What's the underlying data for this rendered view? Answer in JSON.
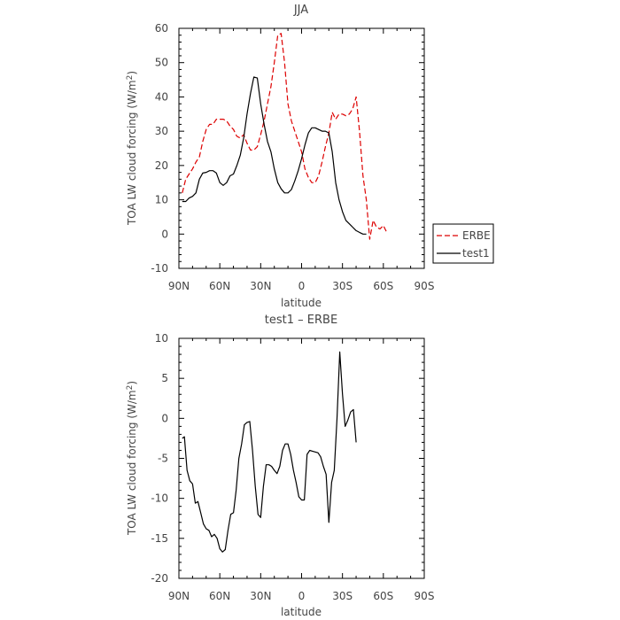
{
  "chart_data": [
    {
      "type": "line",
      "title": "JJA",
      "xlabel": "latitude",
      "ylabel": "TOA LW cloud forcing (W/m",
      "ylabel_sup": "2",
      "ylabel_close": ")",
      "xlim": [
        90,
        -90
      ],
      "ylim": [
        -10,
        60
      ],
      "x_ticks": [
        90,
        60,
        30,
        0,
        -30,
        -60,
        -90
      ],
      "x_tick_labels": [
        "90N",
        "60N",
        "30N",
        "0",
        "30S",
        "60S",
        "90S"
      ],
      "y_ticks": [
        -10,
        0,
        10,
        20,
        30,
        40,
        50,
        60
      ],
      "y_tick_labels": [
        "-10",
        "0",
        "10",
        "20",
        "30",
        "40",
        "50",
        "60"
      ],
      "legend_position": "right-bottom",
      "series": [
        {
          "name": "ERBE",
          "color": "#dd0000",
          "dash": "dashed",
          "points": [
            [
              87.5,
              12
            ],
            [
              85,
              16
            ],
            [
              82.5,
              17.5
            ],
            [
              80,
              19
            ],
            [
              77.5,
              21
            ],
            [
              75,
              22.5
            ],
            [
              72.5,
              27
            ],
            [
              70,
              30.5
            ],
            [
              67.5,
              32
            ],
            [
              65,
              32
            ],
            [
              62.5,
              33.5
            ],
            [
              60,
              33.5
            ],
            [
              57.5,
              33.5
            ],
            [
              55,
              33
            ],
            [
              52.5,
              31.5
            ],
            [
              50,
              30.5
            ],
            [
              47.5,
              28.5
            ],
            [
              45,
              28
            ],
            [
              42.5,
              29
            ],
            [
              40,
              26.5
            ],
            [
              37.5,
              24.5
            ],
            [
              35,
              24.5
            ],
            [
              32.5,
              25.5
            ],
            [
              30,
              29
            ],
            [
              27.5,
              33
            ],
            [
              25,
              38
            ],
            [
              22.5,
              43
            ],
            [
              20,
              50
            ],
            [
              17.5,
              58
            ],
            [
              15,
              58.5
            ],
            [
              12.5,
              50
            ],
            [
              10,
              38
            ],
            [
              7.5,
              33
            ],
            [
              5,
              30
            ],
            [
              2.5,
              27
            ],
            [
              0,
              24
            ],
            [
              -2.5,
              19
            ],
            [
              -5,
              16.5
            ],
            [
              -7.5,
              15
            ],
            [
              -10,
              15
            ],
            [
              -12.5,
              17
            ],
            [
              -15,
              21
            ],
            [
              -17.5,
              25.5
            ],
            [
              -20,
              29.5
            ],
            [
              -22.5,
              35.5
            ],
            [
              -25,
              33.5
            ],
            [
              -27.5,
              35
            ],
            [
              -30,
              35
            ],
            [
              -32.5,
              34.5
            ],
            [
              -35,
              35
            ],
            [
              -37.5,
              36.5
            ],
            [
              -40,
              40
            ],
            [
              -42.5,
              30
            ],
            [
              -45,
              17
            ],
            [
              -47.5,
              10
            ],
            [
              -50,
              -1.5
            ],
            [
              -52.5,
              4
            ],
            [
              -55,
              2
            ],
            [
              -57.5,
              1.5
            ],
            [
              -60,
              2.5
            ],
            [
              -62.5,
              0.5
            ]
          ]
        },
        {
          "name": "test1",
          "color": "#000000",
          "dash": "solid",
          "points": [
            [
              87.5,
              9.5
            ],
            [
              85,
              9.5
            ],
            [
              82.5,
              10.5
            ],
            [
              80,
              11
            ],
            [
              77.5,
              12
            ],
            [
              75,
              16
            ],
            [
              72.5,
              17.8
            ],
            [
              70,
              18
            ],
            [
              67.5,
              18.5
            ],
            [
              65,
              18.5
            ],
            [
              62.5,
              17.8
            ],
            [
              60,
              15
            ],
            [
              57.5,
              14.2
            ],
            [
              55,
              15
            ],
            [
              52.5,
              17
            ],
            [
              50,
              17.5
            ],
            [
              47.5,
              20
            ],
            [
              45,
              23
            ],
            [
              42.5,
              28
            ],
            [
              40,
              35
            ],
            [
              37.5,
              41
            ],
            [
              35,
              45.8
            ],
            [
              32.5,
              45.5
            ],
            [
              30,
              38
            ],
            [
              27.5,
              32
            ],
            [
              25,
              27
            ],
            [
              22.5,
              24
            ],
            [
              20,
              19
            ],
            [
              17.5,
              15
            ],
            [
              15,
              13.2
            ],
            [
              12.5,
              12
            ],
            [
              10,
              12
            ],
            [
              7.5,
              13
            ],
            [
              5,
              15.5
            ],
            [
              2.5,
              18.5
            ],
            [
              0,
              22
            ],
            [
              -2.5,
              26
            ],
            [
              -5,
              29.5
            ],
            [
              -7.5,
              31
            ],
            [
              -10,
              31
            ],
            [
              -12.5,
              30.5
            ],
            [
              -15,
              30
            ],
            [
              -17.5,
              30
            ],
            [
              -20,
              29.5
            ],
            [
              -22.5,
              24
            ],
            [
              -25,
              15
            ],
            [
              -27.5,
              10
            ],
            [
              -30,
              6.5
            ],
            [
              -32.5,
              4
            ],
            [
              -35,
              3
            ],
            [
              -37.5,
              2
            ],
            [
              -40,
              1
            ],
            [
              -42.5,
              0.5
            ],
            [
              -45,
              0
            ],
            [
              -47.5,
              0
            ]
          ]
        }
      ]
    },
    {
      "type": "line",
      "title": "test1 – ERBE",
      "xlabel": "latitude",
      "ylabel": "TOA LW cloud forcing (W/m",
      "ylabel_sup": "2",
      "ylabel_close": ")",
      "xlim": [
        90,
        -90
      ],
      "ylim": [
        -20,
        10
      ],
      "x_ticks": [
        90,
        60,
        30,
        0,
        -30,
        -60,
        -90
      ],
      "x_tick_labels": [
        "90N",
        "60N",
        "30N",
        "0",
        "30S",
        "60S",
        "90S"
      ],
      "y_ticks": [
        -20,
        -15,
        -10,
        -5,
        0,
        5,
        10
      ],
      "y_tick_labels": [
        "-20",
        "-15",
        "-10",
        "-5",
        "0",
        "5",
        "10"
      ],
      "series": [
        {
          "color": "#000000",
          "dash": "solid",
          "points": [
            [
              87.5,
              -2.5
            ],
            [
              86,
              -2.3
            ],
            [
              84,
              -6.5
            ],
            [
              82,
              -7.8
            ],
            [
              80,
              -8.2
            ],
            [
              78,
              -10.6
            ],
            [
              76,
              -10.4
            ],
            [
              74,
              -11.8
            ],
            [
              72,
              -13.2
            ],
            [
              70,
              -13.8
            ],
            [
              68,
              -14
            ],
            [
              66,
              -14.8
            ],
            [
              64,
              -14.5
            ],
            [
              62,
              -15
            ],
            [
              60,
              -16.3
            ],
            [
              58,
              -16.7
            ],
            [
              56,
              -16.4
            ],
            [
              54,
              -14
            ],
            [
              52,
              -12
            ],
            [
              50,
              -11.8
            ],
            [
              48,
              -9
            ],
            [
              46,
              -5
            ],
            [
              44,
              -3.2
            ],
            [
              42,
              -0.8
            ],
            [
              40,
              -0.5
            ],
            [
              38,
              -0.4
            ],
            [
              36,
              -4
            ],
            [
              34,
              -8.5
            ],
            [
              32,
              -12
            ],
            [
              30,
              -12.4
            ],
            [
              28,
              -8.5
            ],
            [
              26,
              -5.8
            ],
            [
              24,
              -5.8
            ],
            [
              22,
              -6
            ],
            [
              20,
              -6.5
            ],
            [
              18,
              -6.9
            ],
            [
              16,
              -6
            ],
            [
              14,
              -4
            ],
            [
              12,
              -3.2
            ],
            [
              10,
              -3.2
            ],
            [
              8,
              -4.5
            ],
            [
              6,
              -6.5
            ],
            [
              4,
              -8
            ],
            [
              2,
              -9.8
            ],
            [
              0,
              -10.2
            ],
            [
              -2,
              -10.2
            ],
            [
              -4,
              -4.5
            ],
            [
              -6,
              -4
            ],
            [
              -8,
              -4.1
            ],
            [
              -10,
              -4.2
            ],
            [
              -12,
              -4.3
            ],
            [
              -14,
              -4.8
            ],
            [
              -16,
              -6
            ],
            [
              -18,
              -7
            ],
            [
              -20,
              -13
            ],
            [
              -22,
              -8
            ],
            [
              -24,
              -6.5
            ],
            [
              -26,
              0
            ],
            [
              -28,
              8.3
            ],
            [
              -30,
              3
            ],
            [
              -32,
              -1
            ],
            [
              -34,
              -0.2
            ],
            [
              -36,
              0.8
            ],
            [
              -38,
              1.1
            ],
            [
              -40,
              -3
            ]
          ]
        }
      ]
    }
  ]
}
